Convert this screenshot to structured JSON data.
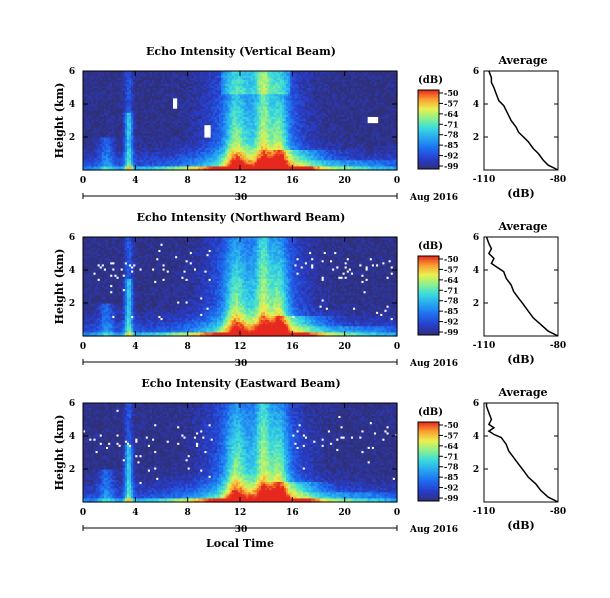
{
  "chart_data": [
    {
      "type": "heatmap",
      "title": "Echo Intensity (Vertical Beam)",
      "ylabel": "Height (km)",
      "xticks": [
        "0",
        "4",
        "8",
        "12",
        "16",
        "20",
        "0"
      ],
      "xlim": [
        0,
        24
      ],
      "yticks": [
        "2",
        "4",
        "6"
      ],
      "ylim": [
        0,
        6
      ],
      "date_label": "30",
      "month_label": "Aug 2016",
      "colorbar": {
        "unit": "(dB)",
        "ticks": [
          "-50",
          "-57",
          "-64",
          "-71",
          "-78",
          "-85",
          "-92",
          "-99"
        ]
      },
      "profile": {
        "title": "Average",
        "xlabel": "(dB)",
        "xticks": [
          "-110",
          "-80"
        ],
        "xlim": [
          -110,
          -80
        ],
        "yticks": [
          "2",
          "4",
          "6"
        ],
        "ylim": [
          0,
          6
        ],
        "points": [
          [
            -80,
            0
          ],
          [
            -84,
            0.3
          ],
          [
            -86,
            0.6
          ],
          [
            -88,
            1.0
          ],
          [
            -90,
            1.3
          ],
          [
            -92,
            1.7
          ],
          [
            -94,
            2.0
          ],
          [
            -96,
            2.3
          ],
          [
            -97,
            2.6
          ],
          [
            -99,
            3.0
          ],
          [
            -100,
            3.3
          ],
          [
            -101,
            3.6
          ],
          [
            -102,
            3.9
          ],
          [
            -104,
            4.2
          ],
          [
            -105,
            4.6
          ],
          [
            -106,
            5.0
          ],
          [
            -107,
            5.3
          ],
          [
            -107,
            5.6
          ],
          [
            -108,
            6.0
          ]
        ]
      }
    },
    {
      "type": "heatmap",
      "title": "Echo Intensity (Northward Beam)",
      "ylabel": "Height (km)",
      "xticks": [
        "0",
        "4",
        "8",
        "12",
        "16",
        "20",
        "0"
      ],
      "xlim": [
        0,
        24
      ],
      "yticks": [
        "2",
        "4",
        "6"
      ],
      "ylim": [
        0,
        6
      ],
      "date_label": "30",
      "month_label": "Aug 2016",
      "colorbar": {
        "unit": "(dB)",
        "ticks": [
          "-50",
          "-57",
          "-64",
          "-71",
          "-78",
          "-85",
          "-92",
          "-99"
        ]
      },
      "profile": {
        "title": "Average",
        "xlabel": "(dB)",
        "xticks": [
          "-110",
          "-80"
        ],
        "xlim": [
          -110,
          -80
        ],
        "yticks": [
          "2",
          "4",
          "6"
        ],
        "ylim": [
          0,
          6
        ],
        "points": [
          [
            -80,
            0
          ],
          [
            -84,
            0.3
          ],
          [
            -87,
            0.7
          ],
          [
            -90,
            1.1
          ],
          [
            -92,
            1.5
          ],
          [
            -94,
            1.9
          ],
          [
            -96,
            2.3
          ],
          [
            -98,
            2.7
          ],
          [
            -99,
            3.1
          ],
          [
            -101,
            3.5
          ],
          [
            -102,
            3.9
          ],
          [
            -105,
            4.2
          ],
          [
            -107,
            4.4
          ],
          [
            -106,
            4.7
          ],
          [
            -108,
            5.0
          ],
          [
            -107,
            5.3
          ],
          [
            -108,
            5.6
          ],
          [
            -109,
            6.0
          ]
        ]
      }
    },
    {
      "type": "heatmap",
      "title": "Echo Intensity (Eastward Beam)",
      "ylabel": "Height (km)",
      "xticks": [
        "0",
        "4",
        "8",
        "12",
        "16",
        "20",
        "0"
      ],
      "xlim": [
        0,
        24
      ],
      "yticks": [
        "2",
        "4",
        "6"
      ],
      "ylim": [
        0,
        6
      ],
      "date_label": "30",
      "month_label": "Aug 2016",
      "xlabel": "Local Time",
      "colorbar": {
        "unit": "(dB)",
        "ticks": [
          "-50",
          "-57",
          "-64",
          "-71",
          "-78",
          "-85",
          "-92",
          "-99"
        ]
      },
      "profile": {
        "title": "Average",
        "xlabel": "(dB)",
        "xticks": [
          "-110",
          "-80"
        ],
        "xlim": [
          -110,
          -80
        ],
        "yticks": [
          "2",
          "4",
          "6"
        ],
        "ylim": [
          0,
          6
        ],
        "points": [
          [
            -80,
            0
          ],
          [
            -84,
            0.3
          ],
          [
            -87,
            0.7
          ],
          [
            -89,
            1.1
          ],
          [
            -92,
            1.5
          ],
          [
            -94,
            1.9
          ],
          [
            -96,
            2.3
          ],
          [
            -98,
            2.7
          ],
          [
            -100,
            3.1
          ],
          [
            -101,
            3.5
          ],
          [
            -103,
            3.9
          ],
          [
            -106,
            4.1
          ],
          [
            -108,
            4.3
          ],
          [
            -106,
            4.5
          ],
          [
            -108,
            4.7
          ],
          [
            -107,
            5.0
          ],
          [
            -108,
            5.4
          ],
          [
            -109,
            5.8
          ],
          [
            -109,
            6.0
          ]
        ]
      }
    }
  ],
  "colors": {
    "background": "#ffffff",
    "ink": "#000000",
    "missing": "#ffffff",
    "gradient_top": "#d7191c",
    "gradient_bottom": "#30307a"
  }
}
